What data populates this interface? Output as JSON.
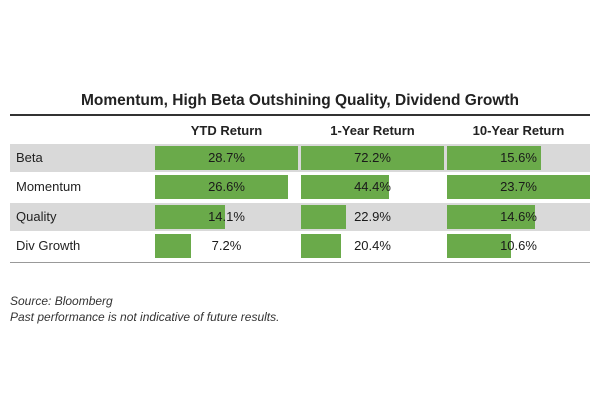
{
  "chart_data": {
    "type": "table",
    "title": "Momentum, High Beta Outshining Quality, Dividend Growth",
    "columns": [
      "YTD Return",
      "1-Year Return",
      "10-Year Return"
    ],
    "rows": [
      {
        "label": "Beta",
        "values": [
          28.7,
          72.2,
          15.6
        ],
        "display": [
          "28.7%",
          "72.2%",
          "15.6%"
        ]
      },
      {
        "label": "Momentum",
        "values": [
          26.6,
          44.4,
          23.7
        ],
        "display": [
          "26.6%",
          "44.4%",
          "23.7%"
        ]
      },
      {
        "label": "Quality",
        "values": [
          14.1,
          22.9,
          14.6
        ],
        "display": [
          "14.1%",
          "22.9%",
          "14.6%"
        ]
      },
      {
        "label": "Div Growth",
        "values": [
          7.2,
          20.4,
          10.6
        ],
        "display": [
          "7.2%",
          "20.4%",
          "10.6%"
        ]
      }
    ]
  },
  "notes": {
    "source": "Source: Bloomberg",
    "disclaimer": "Past performance is not indicative of future results."
  },
  "colors": {
    "bar": "#6aaa4a",
    "shade": "#d9d9d9"
  }
}
